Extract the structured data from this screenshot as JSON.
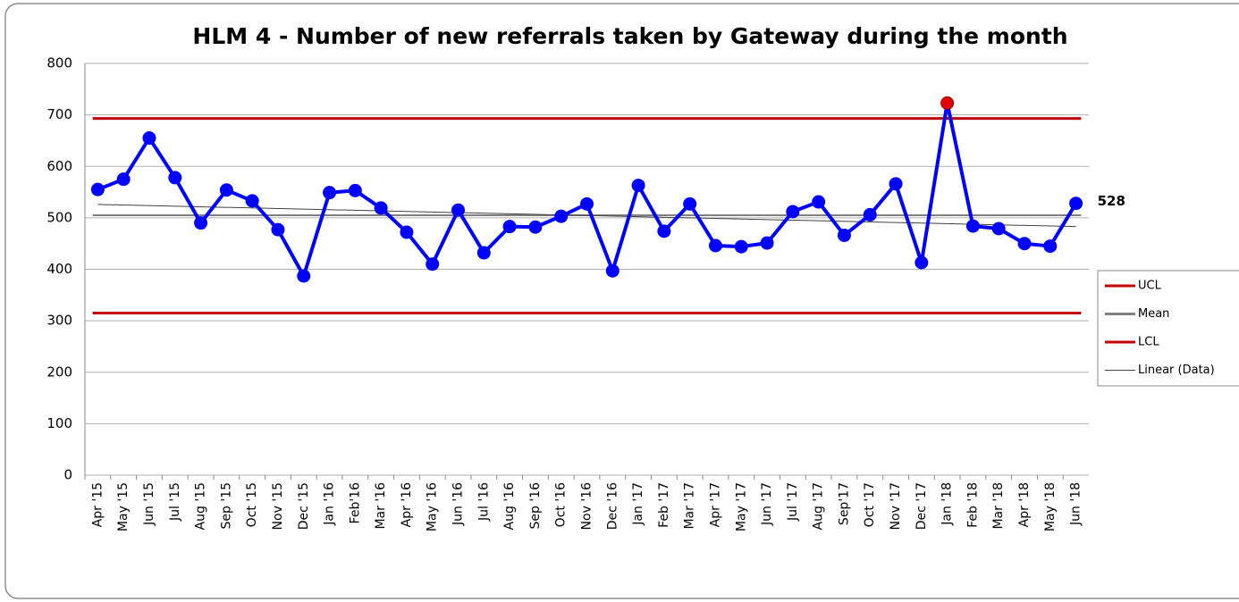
{
  "chart_data": {
    "type": "line",
    "title": "HLM 4 - Number of new referrals taken by Gateway during the month",
    "categories": [
      "Apr '15",
      "May '15",
      "Jun '15",
      "Jul '15",
      "Aug '15",
      "Sep '15",
      "Oct '15",
      "Nov '15",
      "Dec '15",
      "Jan '16",
      "Feb'16",
      "Mar '16",
      "Apr '16",
      "May '16",
      "Jun '16",
      "Jul '16",
      "Aug '16",
      "Sep '16",
      "Oct '16",
      "Nov '16",
      "Dec '16",
      "Jan '17",
      "Feb '17",
      "Mar '17",
      "Apr '17",
      "May '17",
      "Jun '17",
      "Jul '17",
      "Aug '17",
      "Sep'17",
      "Oct '17",
      "Nov '17",
      "Dec '17",
      "Jan '18",
      "Feb '18",
      "Mar '18",
      "Apr '18",
      "May '18",
      "Jun '18"
    ],
    "series": [
      {
        "color": "#0000ff",
        "values": [
          555,
          575,
          655,
          578,
          490,
          554,
          533,
          477,
          387,
          549,
          553,
          519,
          472,
          410,
          515,
          432,
          483,
          482,
          503,
          527,
          397,
          563,
          474,
          527,
          446,
          444,
          451,
          512,
          531,
          466,
          506,
          566,
          413,
          723,
          484,
          479,
          450,
          445,
          528
        ],
        "highlight": [
          {
            "index": 33,
            "color": "#e00000"
          }
        ],
        "labeled_points": [
          38
        ]
      }
    ],
    "limits": [
      {
        "name": "UCL",
        "color": "#c00000",
        "value": 693
      },
      {
        "name": "Mean",
        "color": "#808080",
        "value": 505
      },
      {
        "name": "LCL",
        "color": "#c00000",
        "value": 315
      }
    ],
    "trendline": {
      "name": "Linear (Data)",
      "color": "#404040",
      "start": 526,
      "end": 483
    },
    "ylim": [
      0,
      800
    ],
    "yticks": [
      0,
      100,
      200,
      300,
      400,
      500,
      600,
      700,
      800
    ],
    "grid": true
  }
}
